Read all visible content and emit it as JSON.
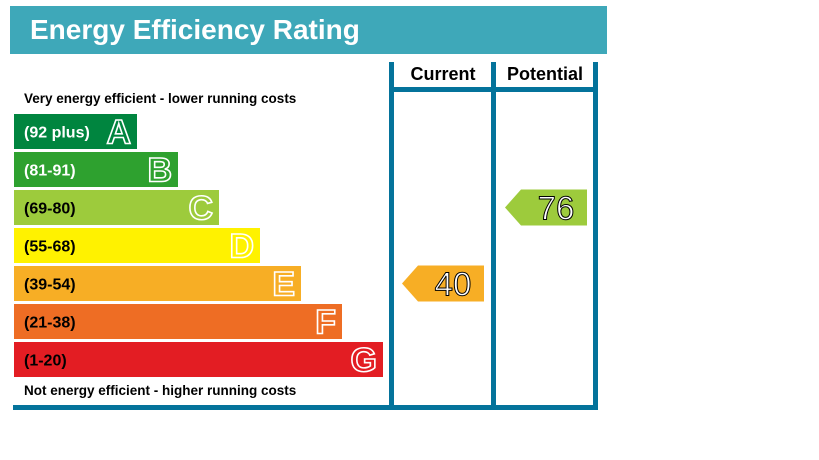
{
  "chart_data": {
    "type": "bar",
    "title": "Energy Efficiency Rating",
    "top_caption": "Very energy efficient - lower running costs",
    "bottom_caption": "Not energy efficient - higher running costs",
    "columns": {
      "current": "Current",
      "potential": "Potential"
    },
    "bands": [
      {
        "letter": "A",
        "range": "(92 plus)",
        "color": "#00853f",
        "text_color": "#ffffff"
      },
      {
        "letter": "B",
        "range": "(81-91)",
        "color": "#2ea12f",
        "text_color": "#ffffff"
      },
      {
        "letter": "C",
        "range": "(69-80)",
        "color": "#9dcb3c",
        "text_color": "#000000"
      },
      {
        "letter": "D",
        "range": "(55-68)",
        "color": "#fff200",
        "text_color": "#000000"
      },
      {
        "letter": "E",
        "range": "(39-54)",
        "color": "#f7ae25",
        "text_color": "#000000"
      },
      {
        "letter": "F",
        "range": "(21-38)",
        "color": "#ee6d24",
        "text_color": "#000000"
      },
      {
        "letter": "G",
        "range": "(1-20)",
        "color": "#e31d23",
        "text_color": "#000000"
      }
    ],
    "ratings": {
      "current": {
        "value": "40",
        "band": "E",
        "color": "#f7ae25"
      },
      "potential": {
        "value": "76",
        "band": "C",
        "color": "#9dcb3c"
      }
    },
    "colors": {
      "header_bg": "#3ea8b9",
      "frame": "#04739b"
    }
  }
}
